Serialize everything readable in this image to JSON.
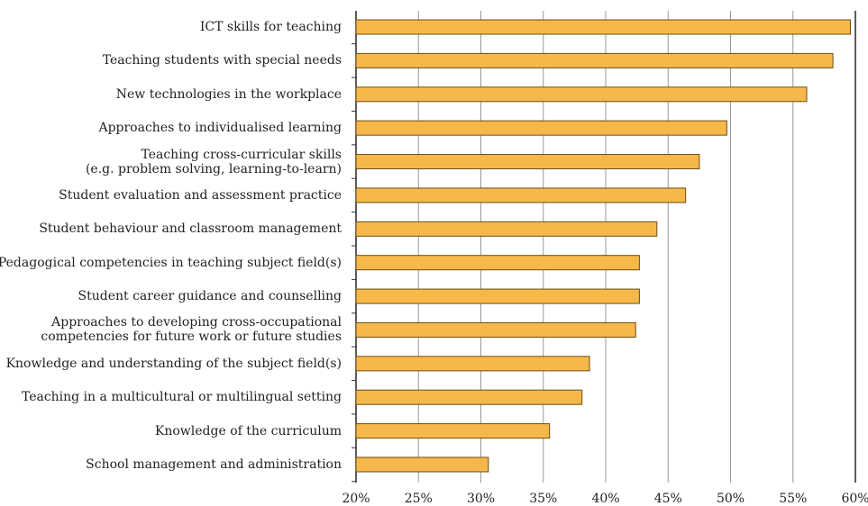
{
  "chart_data": {
    "type": "bar",
    "orientation": "horizontal",
    "categories": [
      "ICT skills for teaching",
      "Teaching students with special needs",
      "New technologies in the workplace",
      "Approaches to individualised learning",
      "Teaching cross-curricular skills\n(e.g. problem solving, learning-to-learn)",
      "Student evaluation and assessment practice",
      "Student behaviour and classroom management",
      "Pedagogical competencies in teaching subject field(s)",
      "Student career guidance and counselling",
      "Approaches to developing cross-occupational\ncompetencies for future work or future studies",
      "Knowledge and understanding of the subject field(s)",
      "Teaching in a multicultural or multilingual setting",
      "Knowledge of the curriculum",
      "School management and administration"
    ],
    "values": [
      59.6,
      58.2,
      56.1,
      49.7,
      47.5,
      46.4,
      44.1,
      42.7,
      42.7,
      42.4,
      38.7,
      38.1,
      35.5,
      30.6
    ],
    "color": "#f7b84b",
    "xlim": [
      20,
      60
    ],
    "xticks": [
      {
        "value": 20,
        "label": "20%"
      },
      {
        "value": 25,
        "label": "25%"
      },
      {
        "value": 30,
        "label": "30%"
      },
      {
        "value": 35,
        "label": "35%"
      },
      {
        "value": 40,
        "label": "40%"
      },
      {
        "value": 45,
        "label": "45%"
      },
      {
        "value": 50,
        "label": "50%"
      },
      {
        "value": 55,
        "label": "55%"
      },
      {
        "value": 60,
        "label": "60%"
      }
    ],
    "grid": true
  }
}
